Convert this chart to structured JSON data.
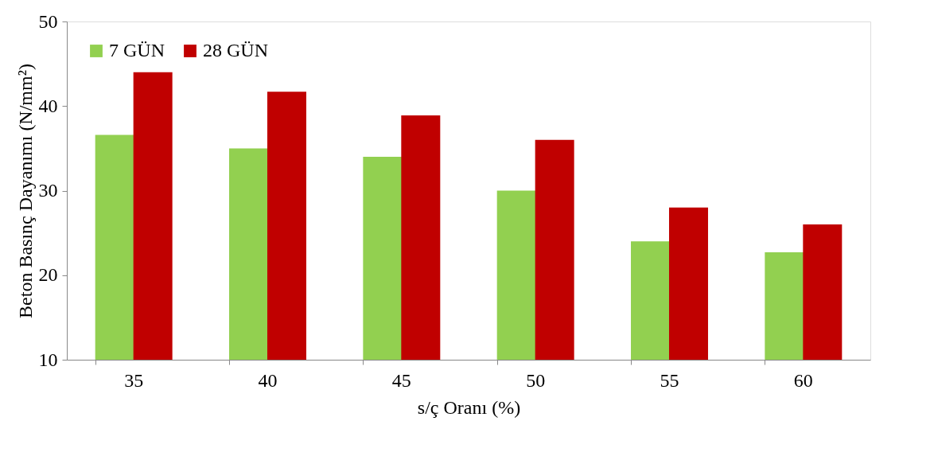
{
  "chart_data": {
    "type": "bar",
    "xlabel": "s/ç Oranı (%)",
    "ylabel": "Beton Basınç Dayanımı (N/mm²)",
    "categories": [
      "35",
      "40",
      "45",
      "50",
      "55",
      "60"
    ],
    "series": [
      {
        "name": "7 GÜN",
        "color": "#92d050",
        "values": [
          36.6,
          35,
          34,
          30,
          24,
          22.7
        ]
      },
      {
        "name": "28 GÜN",
        "color": "#c00000",
        "values": [
          44,
          41.7,
          38.9,
          36,
          28,
          26
        ]
      }
    ],
    "ylim": [
      10,
      50
    ],
    "yticks": [
      10,
      20,
      30,
      40,
      50
    ],
    "grid": false,
    "legend": "top left"
  }
}
